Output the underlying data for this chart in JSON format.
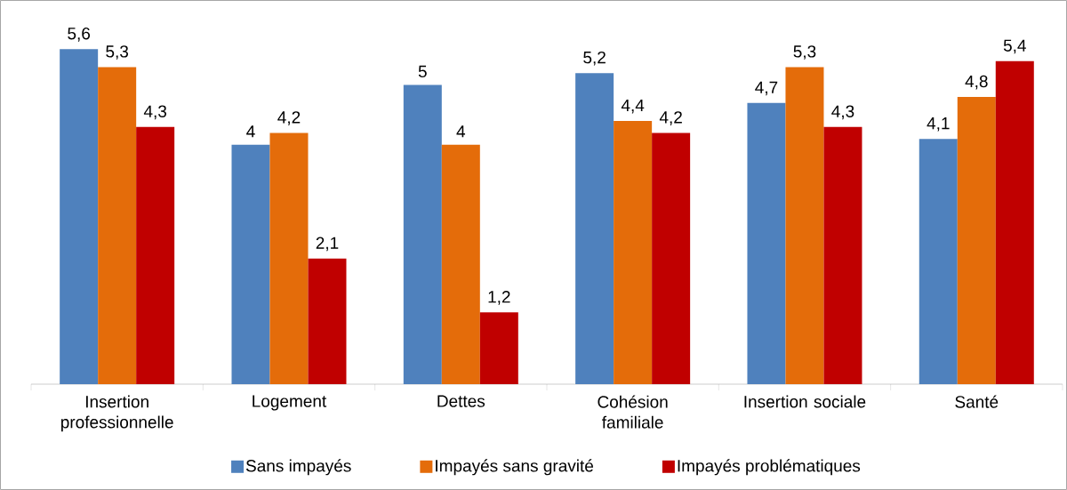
{
  "chart_data": {
    "type": "bar",
    "categories": [
      "Insertion professionnelle",
      "Logement",
      "Dettes",
      "Cohésion familiale",
      "Insertion sociale",
      "Santé"
    ],
    "legend": "bottom",
    "series": [
      {
        "name": "Sans impayés",
        "color": "#4f81bd",
        "values": [
          5.6,
          4,
          5,
          5.2,
          4.7,
          4.1
        ],
        "value_labels": [
          "5,6",
          "4",
          "5",
          "5,2",
          "4,7",
          "4,1"
        ]
      },
      {
        "name": "Impayés sans gravité",
        "color": "#e46c0a",
        "values": [
          5.3,
          4.2,
          4,
          4.4,
          5.3,
          4.8
        ],
        "value_labels": [
          "5,3",
          "4,2",
          "4",
          "4,4",
          "5,3",
          "4,8"
        ]
      },
      {
        "name": "Impayés problématiques",
        "color": "#c00000",
        "values": [
          4.3,
          2.1,
          1.2,
          4.2,
          4.3,
          5.4
        ],
        "value_labels": [
          "4,3",
          "2,1",
          "1,2",
          "4,2",
          "4,3",
          "5,4"
        ]
      }
    ]
  }
}
